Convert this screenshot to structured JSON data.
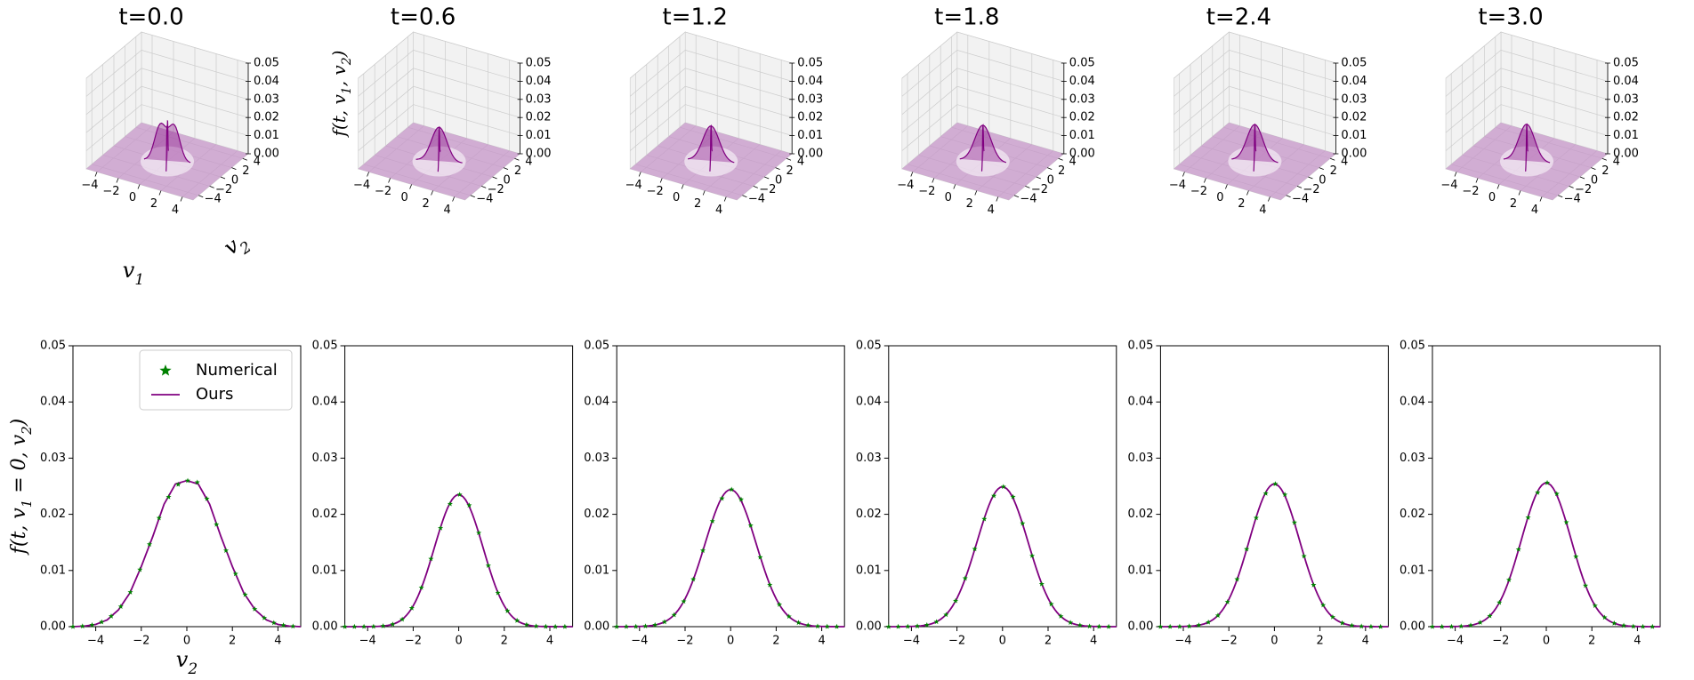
{
  "chart_data": {
    "type": "line",
    "figure_style": {
      "surface_color": "#800080",
      "surface_fill_color": "#c596c8",
      "ours_color": "#800080",
      "numerical_color": "#008000",
      "pane_color": "#f2f2f2",
      "grid_color": "#cccccc"
    },
    "surface_plots": {
      "type": "surface3d",
      "xlabel": "v_1",
      "ylabel": "v_2",
      "zlabel": "f(t, v_1, v_2)",
      "xlim": [
        -5,
        5
      ],
      "ylim": [
        -5,
        5
      ],
      "zlim": [
        0,
        0.05
      ],
      "xticks": [
        "−4",
        "−2",
        "0",
        "2",
        "4"
      ],
      "yticks": [
        "−4",
        "−2",
        "0",
        "2",
        "4"
      ],
      "zticks": [
        "0.00",
        "0.01",
        "0.02",
        "0.03",
        "0.04",
        "0.05"
      ]
    },
    "slice_plots": {
      "type": "line",
      "xlabel": "v_2",
      "ylabel": "f(t, v_1 = 0, v_2)",
      "xlim": [
        -5,
        5
      ],
      "ylim": [
        0,
        0.05
      ],
      "xticks": [
        "−4",
        "−2",
        "0",
        "2",
        "4"
      ],
      "yticks": [
        "0.00",
        "0.01",
        "0.02",
        "0.03",
        "0.04",
        "0.05"
      ],
      "legend": {
        "location": "upper right",
        "entries": [
          "Numerical",
          "Ours"
        ]
      }
    },
    "panels": [
      {
        "title": "t=0.0",
        "series": [
          {
            "name": "Numerical",
            "marker": "star",
            "x": [
              -5,
              -4.5,
              -4,
              -3.5,
              -3,
              -2.5,
              -2,
              -1.5,
              -1,
              -0.5,
              0,
              0.5,
              1,
              1.5,
              2,
              2.5,
              3,
              3.5,
              4,
              4.5,
              5
            ],
            "y": [
              0.0,
              0.0001,
              0.0004,
              0.0012,
              0.003,
              0.006,
              0.0107,
              0.016,
              0.0218,
              0.0254,
              0.026,
              0.0254,
              0.0218,
              0.016,
              0.0107,
              0.006,
              0.003,
              0.0012,
              0.0004,
              0.0001,
              0.0
            ]
          },
          {
            "name": "Ours",
            "marker": "line",
            "x": [
              -5,
              -4.5,
              -4,
              -3.5,
              -3,
              -2.5,
              -2,
              -1.5,
              -1,
              -0.5,
              0,
              0.5,
              1,
              1.5,
              2,
              2.5,
              3,
              3.5,
              4,
              4.5,
              5
            ],
            "y": [
              0.0,
              0.0001,
              0.0004,
              0.0012,
              0.003,
              0.006,
              0.0107,
              0.016,
              0.0218,
              0.0254,
              0.026,
              0.0254,
              0.0218,
              0.016,
              0.0107,
              0.006,
              0.003,
              0.0012,
              0.0004,
              0.0001,
              0.0
            ]
          }
        ]
      },
      {
        "title": "t=0.6",
        "series": []
      },
      {
        "title": "t=1.2",
        "series": []
      },
      {
        "title": "t=1.8",
        "series": []
      },
      {
        "title": "t=2.4",
        "series": []
      },
      {
        "title": "t=3.0",
        "series": []
      }
    ]
  }
}
